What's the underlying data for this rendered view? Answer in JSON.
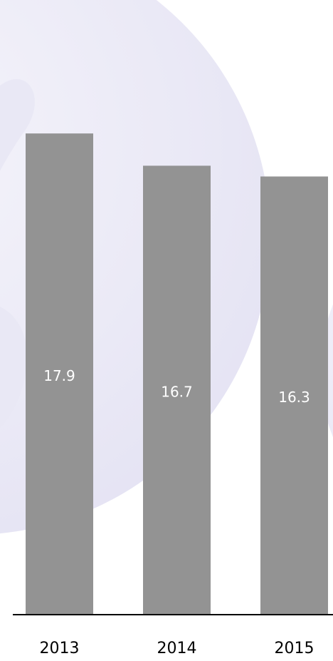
{
  "chart_data": {
    "type": "bar",
    "categories": [
      "2013",
      "2014",
      "2015"
    ],
    "values": [
      17.9,
      16.7,
      16.3
    ],
    "color": "#939393",
    "label_color": "#ffffff",
    "ylim": [
      0,
      20
    ]
  }
}
